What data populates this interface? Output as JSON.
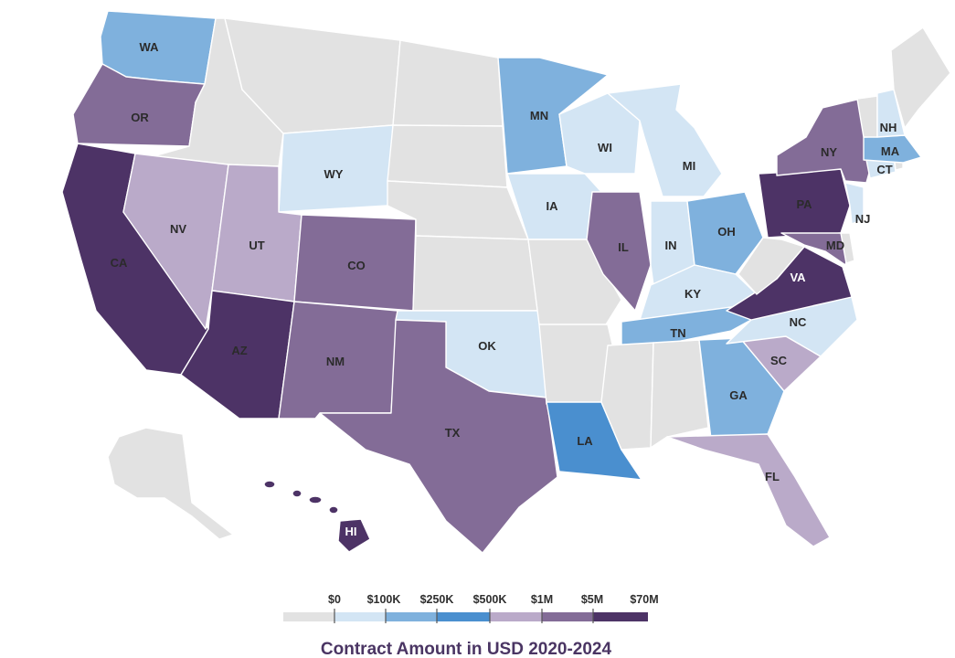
{
  "map": {
    "title": "Contract Amount in USD 2020-2024",
    "legend": {
      "bins": [
        {
          "label": "$0",
          "color": "#e2e2e2"
        },
        {
          "label": "$100K",
          "color": "#d3e5f4"
        },
        {
          "label": "$250K",
          "color": "#7fb1dd"
        },
        {
          "label": "$500K",
          "color": "#4a8fcf"
        },
        {
          "label": "$1M",
          "color": "#baaac9"
        },
        {
          "label": "$5M",
          "color": "#836c97"
        },
        {
          "label": "$70M",
          "color": "#4d3366"
        }
      ]
    },
    "labeled_states": [
      {
        "abbr": "WA",
        "bin": "$250K"
      },
      {
        "abbr": "OR",
        "bin": "$5M"
      },
      {
        "abbr": "CA",
        "bin": "$70M"
      },
      {
        "abbr": "NV",
        "bin": "$1M"
      },
      {
        "abbr": "UT",
        "bin": "$1M"
      },
      {
        "abbr": "AZ",
        "bin": "$70M"
      },
      {
        "abbr": "WY",
        "bin": "$100K"
      },
      {
        "abbr": "CO",
        "bin": "$5M"
      },
      {
        "abbr": "NM",
        "bin": "$5M"
      },
      {
        "abbr": "TX",
        "bin": "$5M"
      },
      {
        "abbr": "OK",
        "bin": "$100K"
      },
      {
        "abbr": "MN",
        "bin": "$250K"
      },
      {
        "abbr": "IA",
        "bin": "$100K"
      },
      {
        "abbr": "WI",
        "bin": "$100K"
      },
      {
        "abbr": "IL",
        "bin": "$5M"
      },
      {
        "abbr": "MI",
        "bin": "$100K"
      },
      {
        "abbr": "IN",
        "bin": "$100K"
      },
      {
        "abbr": "OH",
        "bin": "$250K"
      },
      {
        "abbr": "KY",
        "bin": "$100K"
      },
      {
        "abbr": "TN",
        "bin": "$250K"
      },
      {
        "abbr": "LA",
        "bin": "$500K"
      },
      {
        "abbr": "GA",
        "bin": "$250K"
      },
      {
        "abbr": "FL",
        "bin": "$1M"
      },
      {
        "abbr": "SC",
        "bin": "$1M"
      },
      {
        "abbr": "NC",
        "bin": "$100K"
      },
      {
        "abbr": "VA",
        "bin": "$70M"
      },
      {
        "abbr": "MD",
        "bin": "$5M"
      },
      {
        "abbr": "PA",
        "bin": "$70M"
      },
      {
        "abbr": "NJ",
        "bin": "$100K"
      },
      {
        "abbr": "NY",
        "bin": "$5M"
      },
      {
        "abbr": "CT",
        "bin": "$100K"
      },
      {
        "abbr": "MA",
        "bin": "$250K"
      },
      {
        "abbr": "NH",
        "bin": "$100K"
      },
      {
        "abbr": "HI",
        "bin": "$70M"
      }
    ]
  }
}
